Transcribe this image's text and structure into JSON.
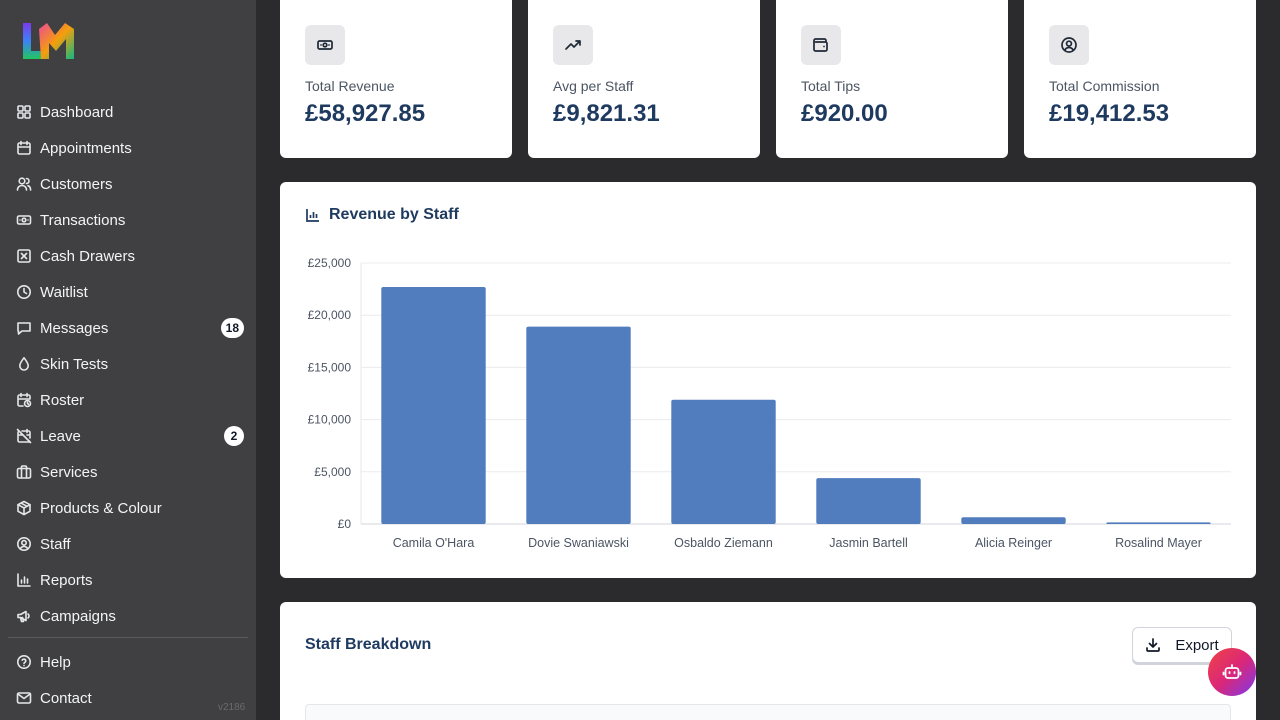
{
  "brand": {
    "logo_text": "LM"
  },
  "sidebar": {
    "items": [
      {
        "label": "Dashboard",
        "icon": "dashboard-icon"
      },
      {
        "label": "Appointments",
        "icon": "calendar-icon"
      },
      {
        "label": "Customers",
        "icon": "users-icon"
      },
      {
        "label": "Transactions",
        "icon": "banknote-icon"
      },
      {
        "label": "Cash Drawers",
        "icon": "square-x-icon"
      },
      {
        "label": "Waitlist",
        "icon": "clock-icon"
      },
      {
        "label": "Messages",
        "icon": "message-icon",
        "badge": "18"
      },
      {
        "label": "Skin Tests",
        "icon": "droplet-icon"
      },
      {
        "label": "Roster",
        "icon": "calendar-clock-icon"
      },
      {
        "label": "Leave",
        "icon": "calendar-off-icon",
        "badge": "2"
      },
      {
        "label": "Services",
        "icon": "briefcase-icon"
      },
      {
        "label": "Products & Colour",
        "icon": "package-icon"
      },
      {
        "label": "Staff",
        "icon": "user-circle-icon"
      },
      {
        "label": "Reports",
        "icon": "bar-chart-icon"
      },
      {
        "label": "Campaigns",
        "icon": "megaphone-icon"
      }
    ],
    "footer_items": [
      {
        "label": "Help",
        "icon": "help-icon"
      },
      {
        "label": "Contact",
        "icon": "mail-icon"
      }
    ],
    "version": "v2186"
  },
  "stats": [
    {
      "label": "Total Revenue",
      "value": "£58,927.85",
      "icon": "banknote-icon"
    },
    {
      "label": "Avg per Staff",
      "value": "£9,821.31",
      "icon": "trending-up-icon"
    },
    {
      "label": "Total Tips",
      "value": "£920.00",
      "icon": "wallet-icon"
    },
    {
      "label": "Total Commission",
      "value": "£19,412.53",
      "icon": "user-circle-icon"
    }
  ],
  "chart_card": {
    "title": "Revenue by Staff"
  },
  "chart_data": {
    "type": "bar",
    "categories": [
      "Camila O'Hara",
      "Dovie Swaniawski",
      "Osbaldo Ziemann",
      "Jasmin Bartell",
      "Alicia Reinger",
      "Rosalind Mayer"
    ],
    "values": [
      22700,
      18900,
      11900,
      4400,
      650,
      150
    ],
    "yticks": [
      "£0",
      "£5,000",
      "£10,000",
      "£15,000",
      "£20,000",
      "£25,000"
    ],
    "ylim": [
      0,
      25000
    ],
    "grid": true,
    "bar_color": "#4e79bc"
  },
  "breakdown": {
    "title": "Staff Breakdown",
    "export_label": "Export"
  },
  "colors": {
    "sidebar": "#404042",
    "background": "#2b2b2d",
    "accent": "#1e3a5f"
  }
}
